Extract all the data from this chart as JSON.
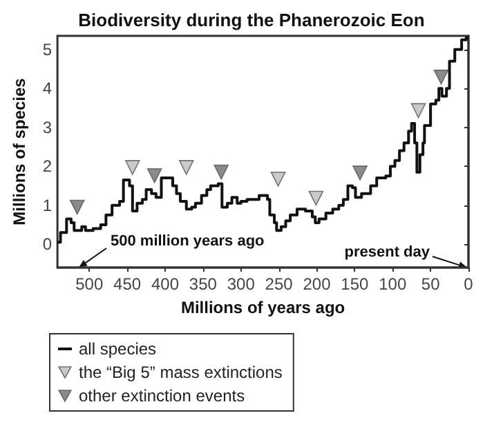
{
  "chart_data": {
    "type": "step",
    "title": "Biodiversity during the Phanerozoic Eon",
    "xlabel": "Millions of years ago",
    "ylabel": "Millions of species",
    "xlim": [
      542,
      0
    ],
    "xticks": [
      500,
      450,
      400,
      350,
      300,
      250,
      200,
      150,
      100,
      50,
      0
    ],
    "ylim": [
      -0.6,
      5.35
    ],
    "yticks": [
      0,
      1,
      2,
      3,
      4,
      5
    ],
    "grid": false,
    "legend": "bottom left",
    "annotations": [
      "500 million years ago",
      "present day"
    ],
    "series": [
      {
        "name": "all species",
        "color": "#111111",
        "marker": "none",
        "x": [
          542,
          538,
          530,
          524,
          520,
          510,
          505,
          495,
          485,
          478,
          470,
          460,
          455,
          447,
          443,
          437,
          430,
          425,
          418,
          412,
          405,
          395,
          390,
          385,
          380,
          372,
          365,
          360,
          352,
          345,
          340,
          330,
          325,
          318,
          312,
          305,
          300,
          292,
          276,
          265,
          262,
          256,
          253,
          247,
          241,
          235,
          226,
          215,
          206,
          202,
          197,
          188,
          179,
          171,
          165,
          159,
          153,
          149,
          141,
          129,
          121,
          109,
          103,
          97,
          91,
          85,
          79,
          75,
          71,
          68,
          64,
          60,
          58,
          50,
          43,
          39,
          35,
          29,
          25,
          18,
          9,
          3,
          0
        ],
        "values": [
          0.05,
          0.3,
          0.65,
          0.55,
          0.35,
          0.45,
          0.35,
          0.4,
          0.5,
          0.75,
          1.0,
          1.1,
          1.65,
          1.5,
          0.85,
          1.05,
          1.15,
          1.4,
          1.3,
          1.2,
          1.7,
          1.7,
          1.5,
          1.3,
          1.1,
          0.9,
          0.95,
          1.05,
          1.25,
          1.4,
          1.5,
          1.55,
          0.95,
          1.05,
          1.2,
          1.05,
          1.1,
          1.15,
          1.25,
          1.15,
          0.75,
          0.55,
          0.35,
          0.45,
          0.6,
          0.75,
          0.9,
          0.85,
          0.7,
          0.55,
          0.65,
          0.8,
          0.9,
          1.0,
          1.15,
          1.5,
          1.45,
          1.2,
          1.3,
          1.5,
          1.7,
          1.75,
          2.0,
          2.15,
          2.4,
          2.6,
          2.9,
          3.1,
          2.6,
          1.85,
          2.3,
          2.6,
          3.05,
          3.6,
          3.7,
          4.0,
          3.8,
          4.0,
          4.7,
          5.0,
          5.25,
          5.3,
          5.3
        ]
      },
      {
        "name": "the “Big 5” mass extinctions",
        "type": "scatter",
        "color": "#bdbdbd",
        "marker": "triangle",
        "x": [
          443,
          372,
          251,
          201,
          66
        ],
        "values": [
          1.97,
          1.97,
          1.67,
          1.18,
          3.43
        ]
      },
      {
        "name": "other extinction events",
        "type": "scatter",
        "color": "#6e6e6e",
        "marker": "triangle",
        "x": [
          516,
          414,
          326,
          143,
          36
        ],
        "values": [
          0.95,
          1.76,
          1.85,
          1.83,
          4.29
        ]
      }
    ]
  }
}
